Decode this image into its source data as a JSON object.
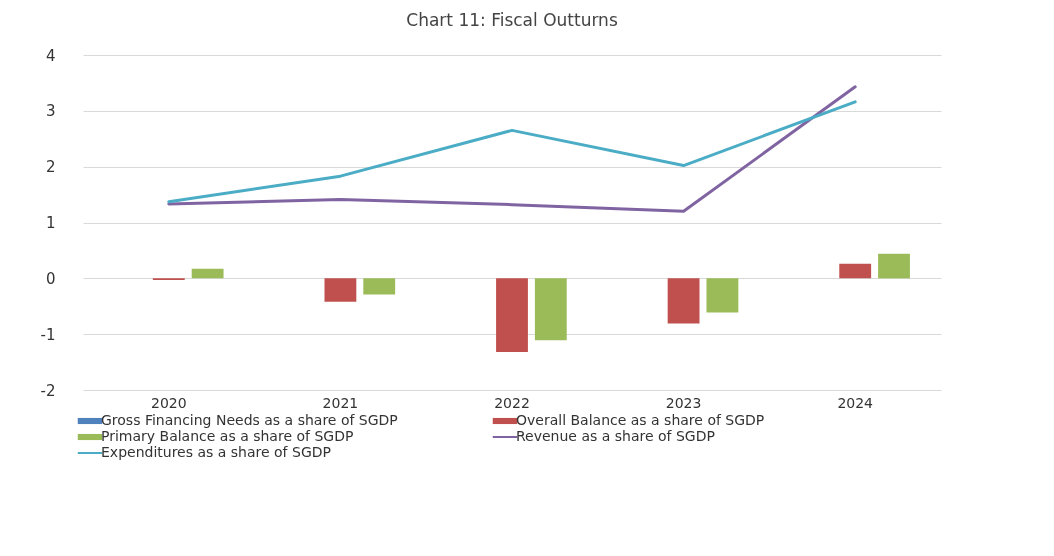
{
  "chart_data": {
    "type": "bar",
    "title": "Chart 11: Fiscal Outturns",
    "categories": [
      "2020",
      "2021",
      "2022",
      "2023",
      "2024"
    ],
    "series": [
      {
        "name": "Gross Financing Needs as a share of SGDP",
        "color": "#4f81bd",
        "values": [
          null,
          null,
          null,
          null,
          null
        ]
      },
      {
        "name": "Overall Balance as a share of SGDP",
        "color": "#c0504d",
        "values": [
          -0.03,
          -0.42,
          -1.32,
          -0.81,
          0.26
        ]
      },
      {
        "name": "Primary Balance as a share of SGDP",
        "color": "#9bbb59",
        "values": [
          0.17,
          -0.29,
          -1.11,
          -0.61,
          0.44
        ]
      },
      {
        "name": "Revenue as a share of SGDP",
        "type": "line",
        "color": "#8064a2",
        "values": [
          1.33,
          1.41,
          1.32,
          1.2,
          3.43
        ]
      },
      {
        "name": "Expenditures as a share of SGDP",
        "type": "line",
        "color": "#4bacc6",
        "values": [
          1.37,
          1.83,
          2.65,
          2.02,
          3.16
        ]
      }
    ],
    "ylim": [
      -2,
      4
    ],
    "yticks": [
      -2,
      -1,
      0,
      1,
      2,
      3,
      4
    ],
    "grid": "y",
    "legend": "bottom"
  }
}
